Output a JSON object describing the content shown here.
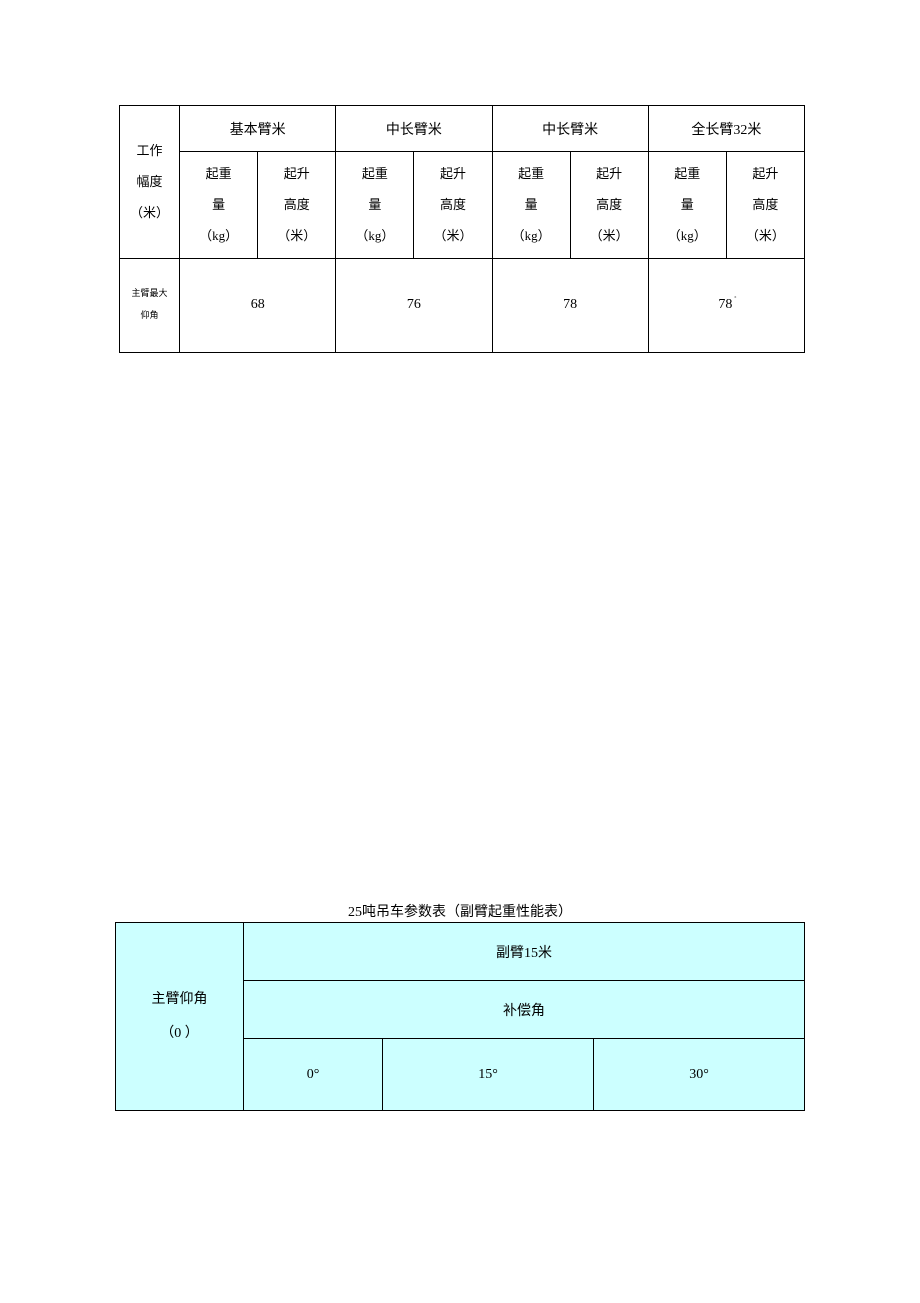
{
  "colors": {
    "page_bg": "#ffffff",
    "border": "#000000",
    "text": "#000000",
    "table2_bg": "#ccffff"
  },
  "table1": {
    "type": "table",
    "header": {
      "first_col_label": "工作\n幅度\n（米）",
      "groups": [
        {
          "label": "基本臂米",
          "sub": [
            "起重\n量\n（kg）",
            "起升\n高度\n（米）"
          ]
        },
        {
          "label": "中长臂米",
          "sub": [
            "起重\n量\n（kg）",
            "起升\n高度\n（米）"
          ]
        },
        {
          "label": "中长臂米",
          "sub": [
            "起重\n量\n（kg）",
            "起升\n高度\n（米）"
          ]
        },
        {
          "label": "全长臂32米",
          "sub": [
            "起重\n量\n（kg）",
            "起升\n高度\n（米）"
          ]
        }
      ]
    },
    "angle_row": {
      "label": "主臂最大\n仰角",
      "values": [
        "68",
        "76",
        "78",
        "78"
      ],
      "last_has_degree_mark": true
    }
  },
  "table2": {
    "type": "table",
    "title": "25吨吊车参数表（副臂起重性能表）",
    "first_col_label": "主臂仰角\n（0 ）",
    "row1_label": "副臂15米",
    "row2_label": "补偿角",
    "row3_values": [
      "0°",
      "15°",
      "30°"
    ]
  }
}
